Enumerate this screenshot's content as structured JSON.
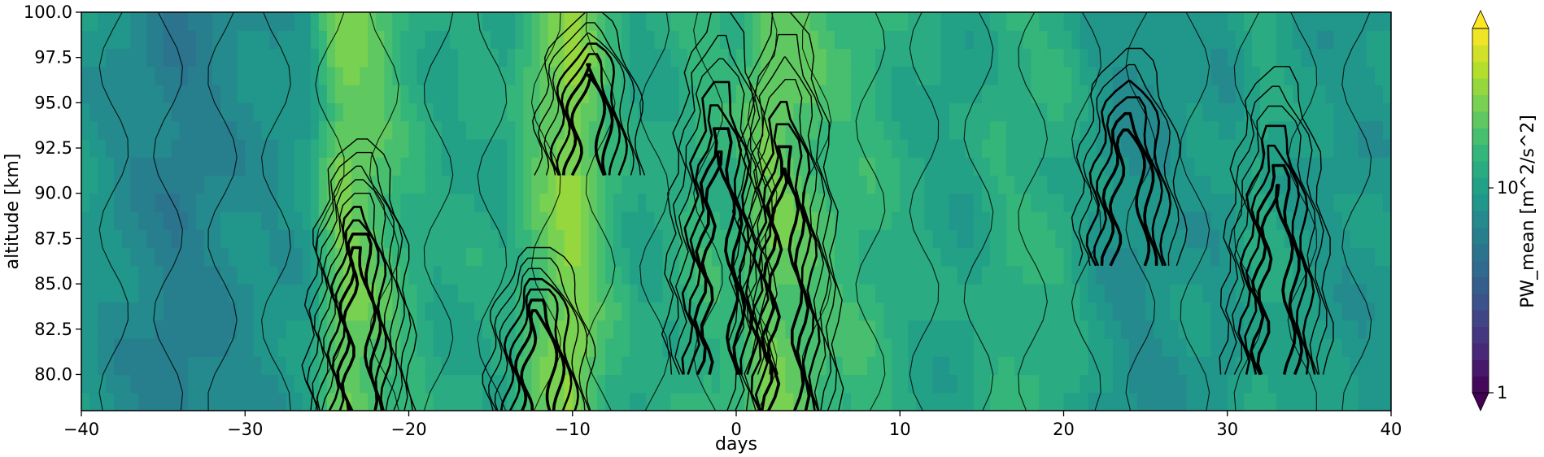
{
  "chart_data": {
    "type": "heatmap",
    "subtype": "filled contour with black contour lines",
    "title": "",
    "xlabel": "days",
    "ylabel": "altitude [km]",
    "xlim": [
      -40,
      40
    ],
    "ylim": [
      78,
      100
    ],
    "xticks": [
      -40,
      -30,
      -20,
      -10,
      0,
      10,
      20,
      30,
      40
    ],
    "xtick_labels": [
      "−40",
      "−30",
      "−20",
      "−10",
      "0",
      "10",
      "20",
      "30",
      "40"
    ],
    "yticks": [
      80.0,
      82.5,
      85.0,
      87.5,
      90.0,
      92.5,
      95.0,
      97.5,
      100.0
    ],
    "ytick_labels": [
      "80.0",
      "82.5",
      "85.0",
      "87.5",
      "90.0",
      "92.5",
      "95.0",
      "97.5",
      "100.0"
    ],
    "grid": false,
    "colormap": "viridis",
    "colorbar": {
      "label": "PW_mean [m^2/s^2]",
      "scale": "log",
      "range": [
        1,
        60
      ],
      "ticks": [
        1,
        10
      ],
      "tick_labels": [
        "1",
        "10"
      ],
      "extend": "both"
    },
    "field_columns_days": [
      -40,
      -38,
      -36,
      -34,
      -32,
      -30,
      -28,
      -26,
      -24,
      -22,
      -20,
      -18,
      -16,
      -14,
      -12,
      -10,
      -8,
      -6,
      -4,
      -2,
      0,
      2,
      4,
      6,
      8,
      10,
      12,
      14,
      16,
      18,
      20,
      22,
      24,
      26,
      28,
      30,
      32,
      34,
      36,
      38,
      40
    ],
    "field_value_description": "approximate PW_mean per day column, roughly uniform in altitude",
    "field_values": [
      9.0,
      7.5,
      6.5,
      5.5,
      6.5,
      7.5,
      8.0,
      9.5,
      25.0,
      20.0,
      14.0,
      11.0,
      12.0,
      11.0,
      20.0,
      30.0,
      16.0,
      11.0,
      12.0,
      15.0,
      14.0,
      24.0,
      20.0,
      16.0,
      15.0,
      12.0,
      11.0,
      10.0,
      13.0,
      13.5,
      12.5,
      9.0,
      7.5,
      8.0,
      9.0,
      8.5,
      12.0,
      10.0,
      9.0,
      8.5,
      9.0
    ],
    "contour_features": [
      {
        "center_day": -23,
        "top_altitude": 93,
        "bottom_altitude": 78,
        "strength": 36
      },
      {
        "center_day": -12,
        "top_altitude": 87,
        "bottom_altitude": 78,
        "strength": 26
      },
      {
        "center_day": -9,
        "top_altitude": 100,
        "bottom_altitude": 91,
        "strength": 28
      },
      {
        "center_day": -1,
        "top_altitude": 100,
        "bottom_altitude": 80,
        "strength": 26
      },
      {
        "center_day": 3,
        "top_altitude": 100,
        "bottom_altitude": 78,
        "strength": 30
      },
      {
        "center_day": 24,
        "top_altitude": 98,
        "bottom_altitude": 86,
        "strength": 22
      },
      {
        "center_day": 33,
        "top_altitude": 97,
        "bottom_altitude": 80,
        "strength": 26
      }
    ]
  }
}
